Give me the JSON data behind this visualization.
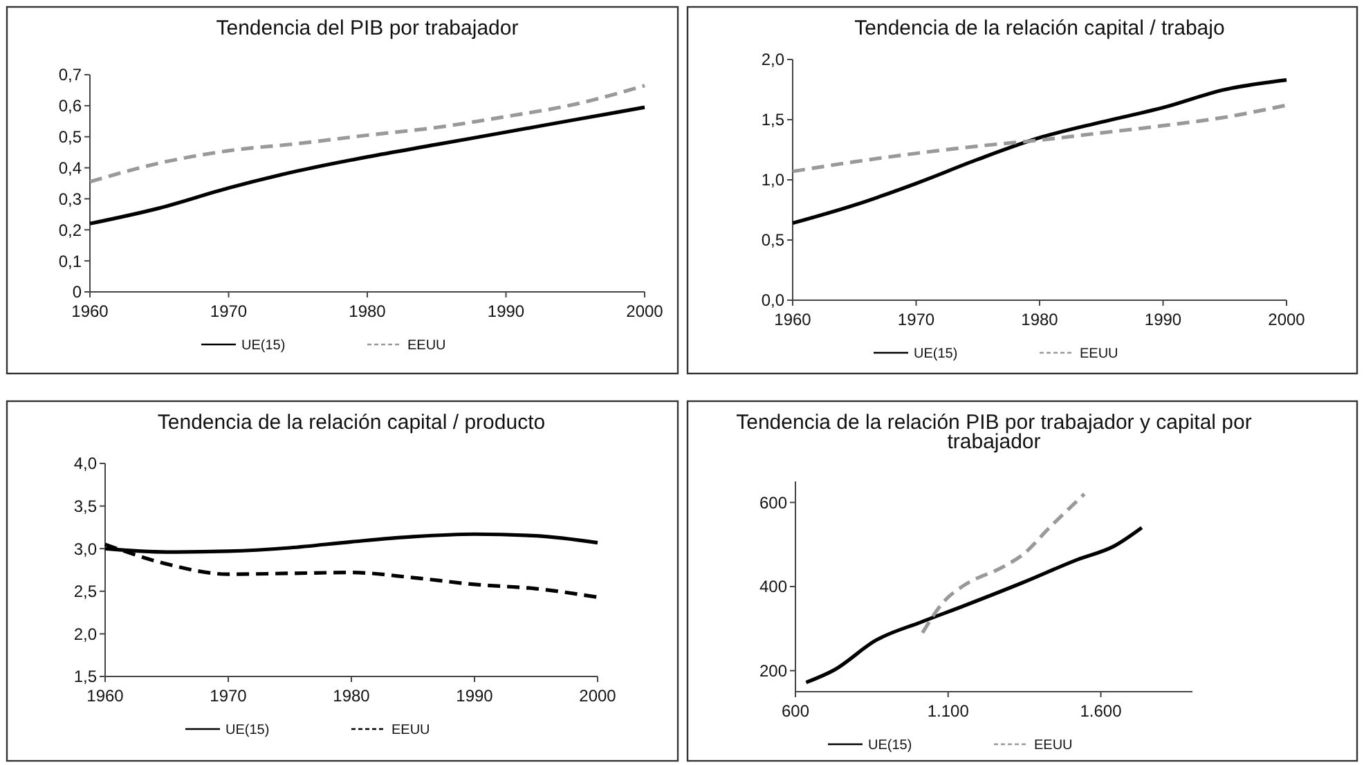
{
  "chart_data": [
    {
      "type": "line",
      "title": "Tendencia del PIB por trabajador",
      "x": [
        1960,
        1965,
        1970,
        1975,
        1980,
        1985,
        1990,
        1995,
        2000
      ],
      "xlim": [
        1960,
        2000
      ],
      "xticks": [
        1960,
        1970,
        1980,
        1990,
        2000
      ],
      "ylim": [
        0,
        0.7
      ],
      "yticks": [
        0,
        {
          "value": 0.1,
          "label": "0,1"
        },
        {
          "value": 0.2,
          "label": "0,2"
        },
        {
          "value": 0.3,
          "label": "0,3"
        },
        {
          "value": 0.4,
          "label": "0,4"
        },
        {
          "value": 0.5,
          "label": "0,5"
        },
        {
          "value": 0.6,
          "label": "0,6"
        },
        {
          "value": 0.7,
          "label": "0,7"
        }
      ],
      "grid": false,
      "legend": "bottom",
      "series": [
        {
          "name": "UE(15)",
          "color": "#000000",
          "line_style": "solid",
          "values": [
            0.22,
            0.27,
            0.335,
            0.39,
            0.435,
            0.475,
            0.515,
            0.555,
            0.595
          ]
        },
        {
          "name": "EEUU",
          "color": "#999999",
          "line_style": "dashed",
          "values": [
            0.355,
            0.415,
            0.455,
            0.478,
            0.505,
            0.53,
            0.565,
            0.605,
            0.665
          ]
        }
      ]
    },
    {
      "type": "line",
      "title": "Tendencia de la relación capital / trabajo",
      "x": [
        1960,
        1965,
        1970,
        1975,
        1980,
        1985,
        1990,
        1995,
        2000
      ],
      "xlim": [
        1960,
        2000
      ],
      "xticks": [
        1960,
        1970,
        1980,
        1990,
        2000
      ],
      "ylim": [
        0,
        2
      ],
      "yticks": [
        {
          "value": 0,
          "label": "0,0"
        },
        {
          "value": 0.5,
          "label": "0,5"
        },
        {
          "value": 1,
          "label": "1,0"
        },
        {
          "value": 1.5,
          "label": "1,5"
        },
        {
          "value": 2,
          "label": "2,0"
        }
      ],
      "grid": false,
      "legend": "bottom",
      "series": [
        {
          "name": "UE(15)",
          "color": "#000000",
          "line_style": "solid",
          "values": [
            0.64,
            0.79,
            0.97,
            1.17,
            1.35,
            1.48,
            1.6,
            1.75,
            1.83
          ]
        },
        {
          "name": "EEUU",
          "color": "#999999",
          "line_style": "dashed",
          "values": [
            1.07,
            1.15,
            1.22,
            1.28,
            1.33,
            1.39,
            1.45,
            1.52,
            1.62
          ]
        }
      ]
    },
    {
      "type": "line",
      "title": "Tendencia de la relación capital / producto",
      "x": [
        1960,
        1965,
        1970,
        1975,
        1980,
        1985,
        1990,
        1995,
        2000
      ],
      "xlim": [
        1960,
        2000
      ],
      "xticks": [
        1960,
        1970,
        1980,
        1990,
        2000
      ],
      "ylim": [
        1.5,
        4
      ],
      "yticks": [
        {
          "value": 1.5,
          "label": "1,5"
        },
        {
          "value": 2,
          "label": "2,0"
        },
        {
          "value": 2.5,
          "label": "2,5"
        },
        {
          "value": 3,
          "label": "3,0"
        },
        {
          "value": 3.5,
          "label": "3,5"
        },
        {
          "value": 4,
          "label": "4,0"
        }
      ],
      "grid": false,
      "legend": "bottom",
      "series": [
        {
          "name": "UE(15)",
          "color": "#000000",
          "line_style": "solid",
          "values": [
            3.0,
            2.96,
            2.97,
            3.01,
            3.08,
            3.14,
            3.17,
            3.15,
            3.07
          ]
        },
        {
          "name": "EEUU",
          "color": "#000000",
          "line_style": "dashed",
          "values": [
            3.05,
            2.82,
            2.7,
            2.71,
            2.72,
            2.66,
            2.58,
            2.53,
            2.43
          ]
        }
      ]
    },
    {
      "type": "line",
      "title": "Tendencia de la relación PIB por trabajador y capital por trabajador",
      "xlim": [
        600,
        1900
      ],
      "xticks": [
        600,
        {
          "value": 1100,
          "label": "1.100"
        },
        {
          "value": 1600,
          "label": "1.600"
        }
      ],
      "ylim": [
        150,
        650
      ],
      "yticks": [
        200,
        400,
        600
      ],
      "grid": false,
      "legend": "bottom",
      "series": [
        {
          "name": "UE(15)",
          "color": "#000000",
          "line_style": "solid",
          "x": [
            635,
            728,
            863,
            1013,
            1151,
            1343,
            1523,
            1643,
            1734
          ],
          "values": [
            172,
            202,
            272,
            316,
            354,
            409,
            464,
            496,
            540
          ]
        },
        {
          "name": "EEUU",
          "color": "#999999",
          "line_style": "dashed",
          "x": [
            1016,
            1088,
            1148,
            1283,
            1343,
            1433,
            1546
          ],
          "values": [
            290,
            366,
            401,
            448,
            475,
            541,
            620
          ]
        }
      ]
    }
  ]
}
